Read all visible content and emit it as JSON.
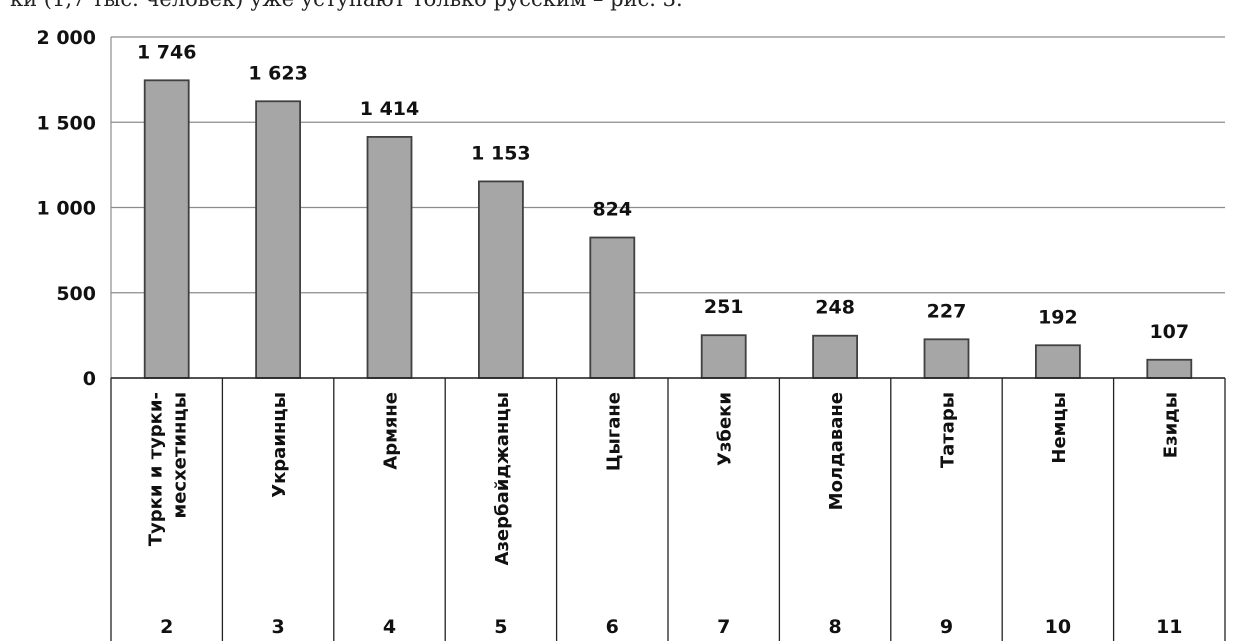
{
  "caption_fragment": "ки (1,7 тыс. человек) уже уступают только русским – рис. 3.",
  "chart_data": {
    "type": "bar",
    "title": "",
    "xlabel": "",
    "ylabel": "",
    "ylim": [
      0,
      2000
    ],
    "yticks": [
      0,
      500,
      1000,
      1500,
      2000
    ],
    "ytick_labels": [
      "0",
      "500",
      "1 000",
      "1 500",
      "2 000"
    ],
    "grid": true,
    "legend": "none",
    "bar_color": "#a6a6a6",
    "bar_stroke": "#404040",
    "categories": [
      [
        "Турки и турки-",
        "месхетинцы"
      ],
      [
        "Украинцы"
      ],
      [
        "Армяне"
      ],
      [
        "Азербайджанцы"
      ],
      [
        "Цыгане"
      ],
      [
        "Узбеки"
      ],
      [
        "Молдаване"
      ],
      [
        "Татары"
      ],
      [
        "Немцы"
      ],
      [
        "Езиды"
      ]
    ],
    "indices": [
      "2",
      "3",
      "4",
      "5",
      "6",
      "7",
      "8",
      "9",
      "10",
      "11"
    ],
    "values": [
      1746,
      1623,
      1414,
      1153,
      824,
      251,
      248,
      227,
      192,
      107
    ],
    "value_labels": [
      "1 746",
      "1 623",
      "1 414",
      "1 153",
      "824",
      "251",
      "248",
      "227",
      "192",
      "107"
    ]
  }
}
